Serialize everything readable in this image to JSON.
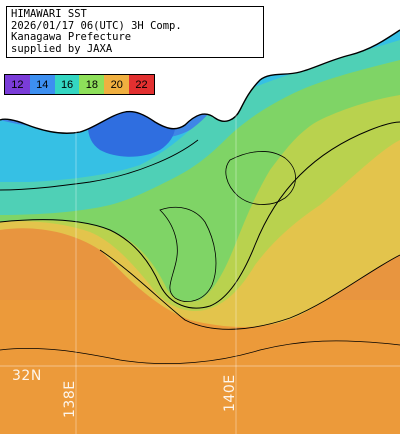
{
  "header": {
    "line1": "HIMAWARI SST",
    "line2": "2026/01/17 06(UTC) 3H Comp.",
    "line3": "Kanagawa Prefecture",
    "line4": "supplied by JAXA"
  },
  "legend": {
    "labels": [
      "12",
      "14",
      "16",
      "18",
      "20",
      "22"
    ],
    "colors": [
      "#7a3cd8",
      "#3d8ff0",
      "#34d6c2",
      "#8ee05a",
      "#f0b040",
      "#e23030"
    ]
  },
  "grid": {
    "lat_label": "32N",
    "lon_label_1": "138E",
    "lon_label_2": "140E"
  },
  "colors": {
    "land": "#ffffff",
    "warm_water": "#e8953f",
    "coastline": "#000000"
  }
}
